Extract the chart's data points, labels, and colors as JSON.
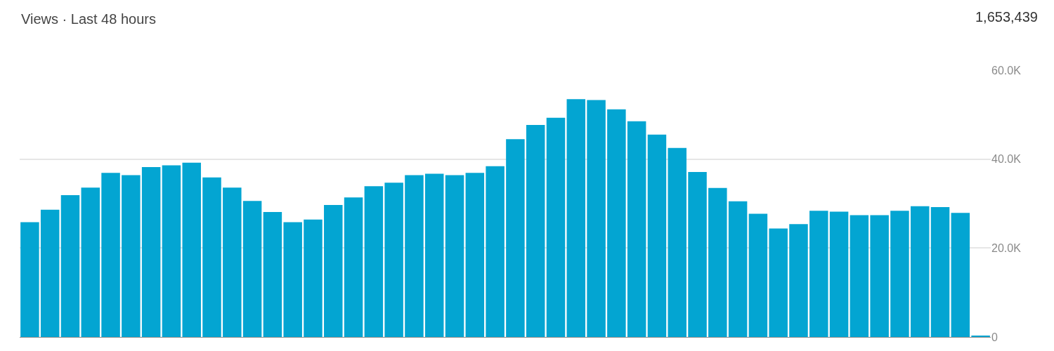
{
  "chart_data": {
    "type": "bar",
    "title": "Views · Last 48 hours",
    "annotations": [
      "1,653,439"
    ],
    "categories": [
      null,
      null,
      null,
      null,
      null,
      null,
      null,
      null,
      null,
      null,
      null,
      null,
      null,
      null,
      null,
      null,
      null,
      null,
      null,
      null,
      null,
      null,
      null,
      null,
      null,
      null,
      null,
      null,
      null,
      null,
      null,
      null,
      null,
      null,
      null,
      null,
      null,
      null,
      null,
      null,
      null,
      null,
      null,
      null,
      null,
      null,
      null,
      null
    ],
    "values": [
      25800,
      28600,
      31900,
      33600,
      36900,
      36400,
      38200,
      38600,
      39200,
      35900,
      33600,
      30600,
      28100,
      25800,
      26400,
      29700,
      31400,
      33900,
      34700,
      36400,
      36700,
      36400,
      36900,
      38400,
      44500,
      47700,
      49300,
      53500,
      53300,
      51200,
      48500,
      45500,
      42500,
      37100,
      33500,
      30500,
      27700,
      24400,
      25400,
      28400,
      28200,
      27400,
      27400,
      28400,
      29400,
      29200,
      27900,
      300
    ],
    "color": "#03a5d2",
    "ylim": [
      0,
      60000
    ],
    "yticks": [
      {
        "value": 0,
        "label": "0"
      },
      {
        "value": 20000,
        "label": "20.0K"
      },
      {
        "value": 40000,
        "label": "40.0K"
      },
      {
        "value": 60000,
        "label": "60.0K"
      }
    ],
    "grid": "y"
  }
}
